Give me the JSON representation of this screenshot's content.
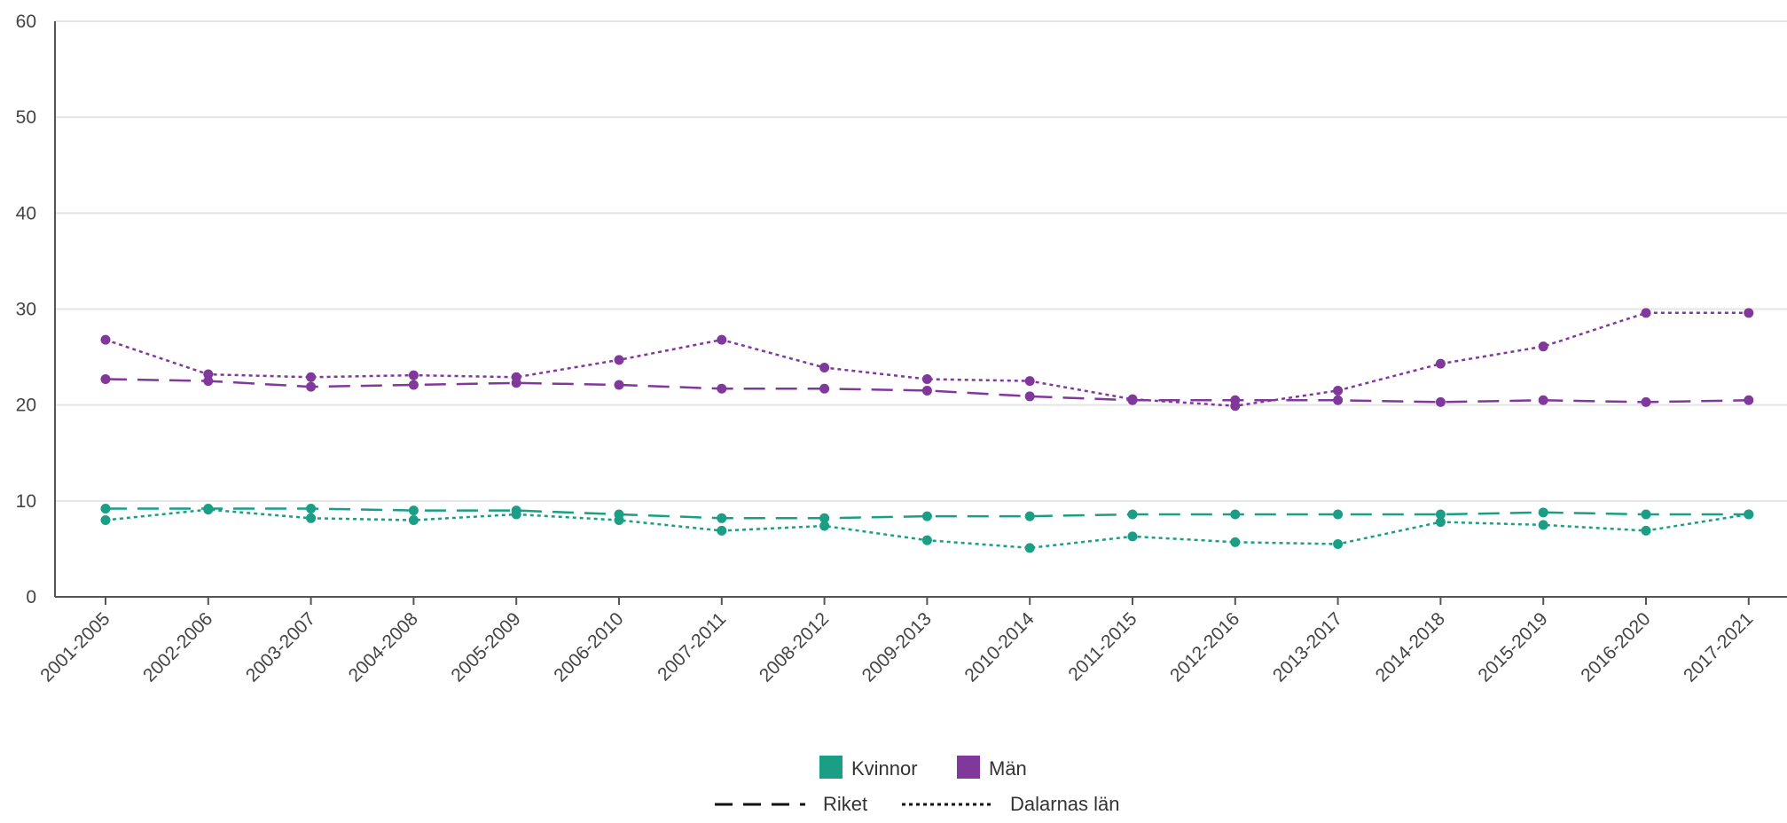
{
  "chart_data": {
    "type": "line",
    "title": "",
    "xlabel": "",
    "ylabel": "",
    "ylim": [
      0,
      60
    ],
    "yticks": [
      "0",
      "10",
      "20",
      "30",
      "40",
      "50",
      "60"
    ],
    "grid": "horizontal",
    "legend_position": "bottom-center",
    "categories": [
      "2001-2005",
      "2002-2006",
      "2003-2007",
      "2004-2008",
      "2005-2009",
      "2006-2010",
      "2007-2011",
      "2008-2012",
      "2009-2013",
      "2010-2014",
      "2011-2015",
      "2012-2016",
      "2013-2017",
      "2014-2018",
      "2015-2019",
      "2016-2020",
      "2017-2021"
    ],
    "legend_groups": [
      {
        "label": "Kvinnor",
        "color": "#1a9e85"
      },
      {
        "label": "Män",
        "color": "#80399a"
      }
    ],
    "legend_styles": [
      {
        "label": "Riket",
        "dash": "dashed"
      },
      {
        "label": "Dalarnas län",
        "dash": "dotted"
      }
    ],
    "series": [
      {
        "group": "Män",
        "style": "Dalarnas län",
        "color": "#80399a",
        "dash": "dotted",
        "values": [
          26.8,
          23.2,
          22.9,
          23.1,
          22.9,
          24.7,
          26.8,
          23.9,
          22.7,
          22.5,
          20.6,
          19.9,
          21.5,
          24.3,
          26.1,
          29.6,
          29.6
        ]
      },
      {
        "group": "Män",
        "style": "Riket",
        "color": "#80399a",
        "dash": "dashed",
        "values": [
          22.7,
          22.5,
          21.9,
          22.1,
          22.3,
          22.1,
          21.7,
          21.7,
          21.5,
          20.9,
          20.5,
          20.5,
          20.5,
          20.3,
          20.5,
          20.3,
          20.5
        ]
      },
      {
        "group": "Kvinnor",
        "style": "Riket",
        "color": "#1a9e85",
        "dash": "dashed",
        "values": [
          9.2,
          9.2,
          9.2,
          9.0,
          9.0,
          8.6,
          8.2,
          8.2,
          8.4,
          8.4,
          8.6,
          8.6,
          8.6,
          8.6,
          8.8,
          8.6,
          8.6
        ]
      },
      {
        "group": "Kvinnor",
        "style": "Dalarnas län",
        "color": "#1a9e85",
        "dash": "dotted",
        "values": [
          8.0,
          9.1,
          8.2,
          8.0,
          8.6,
          8.0,
          6.9,
          7.4,
          5.9,
          5.1,
          6.3,
          5.7,
          5.5,
          7.8,
          7.5,
          6.9,
          8.6
        ]
      }
    ]
  }
}
